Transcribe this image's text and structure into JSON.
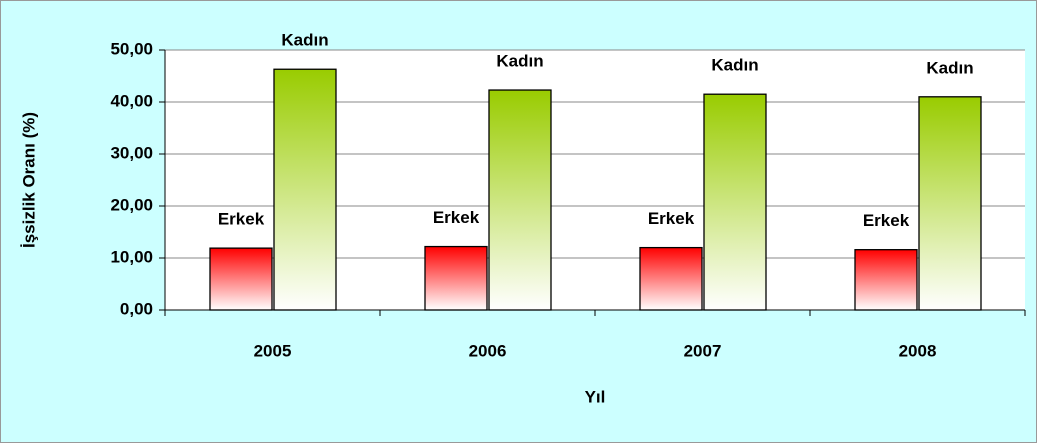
{
  "chart_data": {
    "type": "bar",
    "y_label": "İşsizlik Oranı (%)",
    "x_label": "Yıl",
    "categories": [
      "2005",
      "2006",
      "2007",
      "2008"
    ],
    "series": [
      {
        "name": "Erkek",
        "color": "#ff0000",
        "values": [
          11.9,
          12.2,
          12.0,
          11.6
        ]
      },
      {
        "name": "Kadın",
        "color": "#99cc00",
        "values": [
          46.3,
          42.3,
          41.5,
          41.0
        ]
      }
    ],
    "ylim": [
      0,
      50
    ],
    "yticks": [
      {
        "value": 0,
        "label": "0,00"
      },
      {
        "value": 10,
        "label": "10,00"
      },
      {
        "value": 20,
        "label": "20,00"
      },
      {
        "value": 30,
        "label": "30,00"
      },
      {
        "value": 40,
        "label": "40,00"
      },
      {
        "value": 50,
        "label": "50,00"
      }
    ],
    "grid": true
  }
}
